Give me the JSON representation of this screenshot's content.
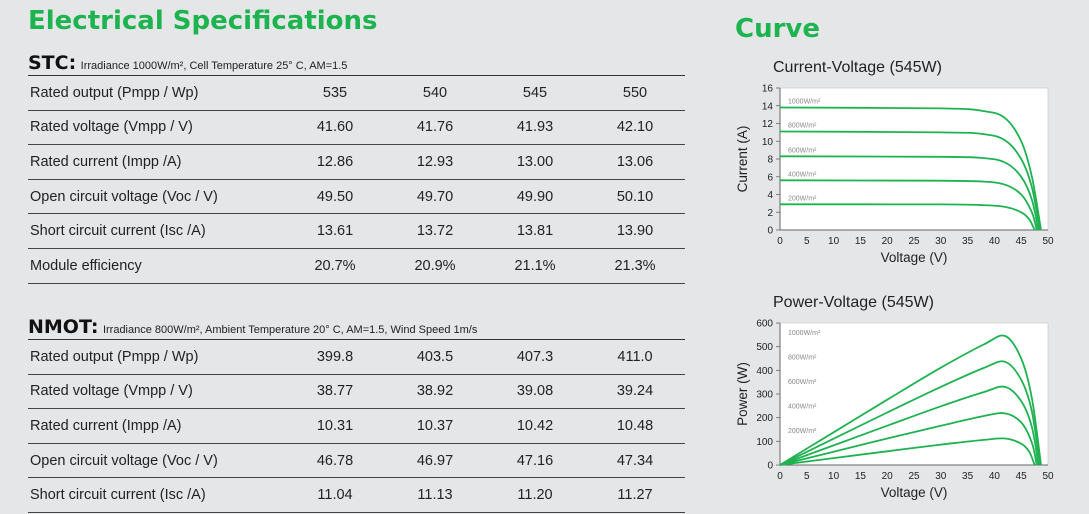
{
  "header": {
    "title": "Electrical Specifications",
    "curve_title": "Curve"
  },
  "stc": {
    "label": "STC:",
    "condition": "Irradiance 1000W/m², Cell Temperature 25° C, AM=1.5",
    "rows": [
      {
        "label": "Rated output (Pmpp / Wp)",
        "values": [
          "535",
          "540",
          "545",
          "550"
        ]
      },
      {
        "label": "Rated voltage (Vmpp / V)",
        "values": [
          "41.60",
          "41.76",
          "41.93",
          "42.10"
        ]
      },
      {
        "label": "Rated current (Impp /A)",
        "values": [
          "12.86",
          "12.93",
          "13.00",
          "13.06"
        ]
      },
      {
        "label": "Open circuit voltage (Voc / V)",
        "values": [
          "49.50",
          "49.70",
          "49.90",
          "50.10"
        ]
      },
      {
        "label": "Short circuit current (Isc /A)",
        "values": [
          "13.61",
          "13.72",
          "13.81",
          "13.90"
        ]
      },
      {
        "label": "Module efficiency",
        "values": [
          "20.7%",
          "20.9%",
          "21.1%",
          "21.3%"
        ]
      }
    ]
  },
  "nmot": {
    "label": "NMOT:",
    "condition": "Irradiance 800W/m², Ambient Temperature 20° C, AM=1.5, Wind Speed 1m/s",
    "rows": [
      {
        "label": "Rated output (Pmpp / Wp)",
        "values": [
          "399.8",
          "403.5",
          "407.3",
          "411.0"
        ]
      },
      {
        "label": "Rated voltage (Vmpp / V)",
        "values": [
          "38.77",
          "38.92",
          "39.08",
          "39.24"
        ]
      },
      {
        "label": "Rated current (Impp /A)",
        "values": [
          "10.31",
          "10.37",
          "10.42",
          "10.48"
        ]
      },
      {
        "label": "Open circuit voltage (Voc / V)",
        "values": [
          "46.78",
          "46.97",
          "47.16",
          "47.34"
        ]
      },
      {
        "label": "Short circuit current (Isc /A)",
        "values": [
          "11.04",
          "11.13",
          "11.20",
          "11.27"
        ]
      }
    ]
  },
  "colors": {
    "accent": "#1db34f",
    "curve": "#1fb251",
    "background": "#e5e6e8"
  },
  "chart_data": [
    {
      "type": "line",
      "title": "Current-Voltage  (545W)",
      "xlabel": "Voltage (V)",
      "ylabel": "Current (A)",
      "xlim": [
        0,
        50
      ],
      "ylim": [
        0,
        16
      ],
      "xticks": [
        0,
        5,
        10,
        15,
        20,
        25,
        30,
        35,
        40,
        45,
        50
      ],
      "yticks": [
        0,
        2,
        4,
        6,
        8,
        10,
        12,
        14,
        16
      ],
      "grid": false,
      "series": [
        {
          "name": "1000W/m²",
          "x": [
            0,
            30,
            38,
            42,
            45,
            47,
            48.7
          ],
          "y": [
            13.8,
            13.7,
            13.4,
            12.6,
            10.0,
            6.0,
            0
          ]
        },
        {
          "name": "800W/m²",
          "x": [
            0,
            30,
            38,
            42,
            45,
            47,
            48.5
          ],
          "y": [
            11.1,
            11.0,
            10.8,
            10.1,
            8.0,
            4.8,
            0
          ]
        },
        {
          "name": "600W/m²",
          "x": [
            0,
            30,
            38,
            42,
            45,
            47,
            48.2
          ],
          "y": [
            8.3,
            8.25,
            8.1,
            7.6,
            6.0,
            3.4,
            0
          ]
        },
        {
          "name": "400W/m²",
          "x": [
            0,
            30,
            38,
            42,
            45,
            47,
            47.9
          ],
          "y": [
            5.6,
            5.55,
            5.45,
            5.1,
            4.0,
            2.0,
            0
          ]
        },
        {
          "name": "200W/m²",
          "x": [
            0,
            30,
            38,
            42,
            45,
            46.5,
            47.5
          ],
          "y": [
            2.9,
            2.88,
            2.8,
            2.6,
            2.0,
            1.2,
            0
          ]
        }
      ]
    },
    {
      "type": "line",
      "title": "Power-Voltage  (545W)",
      "xlabel": "Voltage (V)",
      "ylabel": "Power (W)",
      "xlim": [
        0,
        50
      ],
      "ylim": [
        0,
        600
      ],
      "xticks": [
        0,
        5,
        10,
        15,
        20,
        25,
        30,
        35,
        40,
        45,
        50
      ],
      "yticks": [
        0,
        100,
        200,
        300,
        400,
        500,
        600
      ],
      "grid": false,
      "series": [
        {
          "name": "1000W/m²",
          "x": [
            0,
            10,
            20,
            30,
            38,
            42,
            45,
            47,
            48.7
          ],
          "y": [
            0,
            138,
            276,
            411,
            509,
            545,
            450,
            282,
            0
          ]
        },
        {
          "name": "800W/m²",
          "x": [
            0,
            10,
            20,
            30,
            38,
            42,
            45,
            47,
            48.5
          ],
          "y": [
            0,
            111,
            222,
            330,
            410,
            436,
            360,
            226,
            0
          ]
        },
        {
          "name": "600W/m²",
          "x": [
            0,
            10,
            20,
            30,
            38,
            42,
            45,
            47,
            48.2
          ],
          "y": [
            0,
            83,
            166,
            248,
            308,
            330,
            270,
            160,
            0
          ]
        },
        {
          "name": "400W/m²",
          "x": [
            0,
            10,
            20,
            30,
            38,
            42,
            45,
            47,
            47.9
          ],
          "y": [
            0,
            56,
            112,
            166,
            207,
            218,
            180,
            94,
            0
          ]
        },
        {
          "name": "200W/m²",
          "x": [
            0,
            10,
            20,
            30,
            38,
            42,
            45,
            46.5,
            47.5
          ],
          "y": [
            0,
            29,
            58,
            86,
            106,
            112,
            90,
            56,
            0
          ]
        }
      ]
    }
  ]
}
